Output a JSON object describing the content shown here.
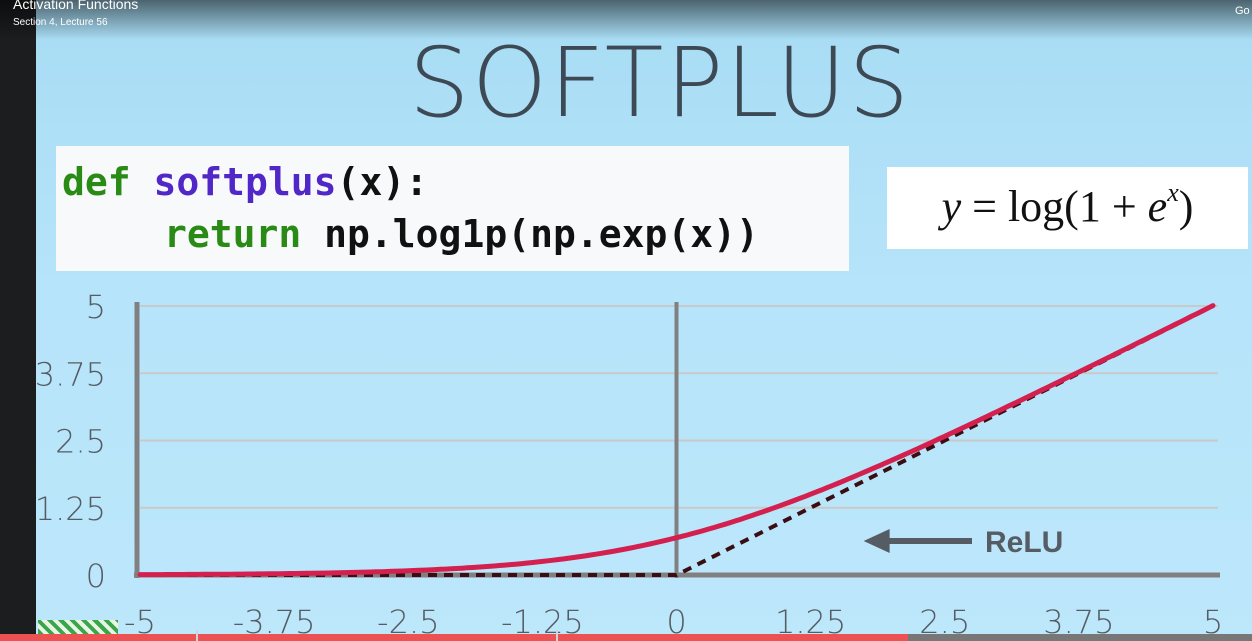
{
  "player": {
    "lecture_title": "Activation Functions",
    "lecture_subtitle": "Section 4, Lecture 56",
    "go_label": "Go",
    "progress": 0.725
  },
  "slide": {
    "title": "SOFTPLUS",
    "code": {
      "line1": {
        "keyword": "def",
        "name": "softplus",
        "rest": "(x):"
      },
      "line2": {
        "keyword": "return",
        "rest": "np.log1p(np.exp(x))"
      }
    },
    "formula": {
      "lhs": "y",
      "eq": " = log(1 + ",
      "base": "e",
      "exp": "x",
      "close": ")"
    },
    "relu_label": "ReLU"
  },
  "colors": {
    "softplus_line": "#d4204f",
    "relu_line": "#3a0d12",
    "axis": "#808080",
    "grid": "#c9c9c9",
    "code_keyword": "#2a8a16",
    "code_function": "#5127c8"
  },
  "chart_data": {
    "type": "line",
    "xlim": [
      -5,
      5
    ],
    "ylim": [
      0,
      5
    ],
    "x_ticks": [
      "-5",
      "-3.75",
      "-2.5",
      "-1.25",
      "0",
      "1.25",
      "2.5",
      "3.75",
      "5"
    ],
    "y_ticks": [
      "0",
      "1.25",
      "2.5",
      "3.75",
      "5"
    ],
    "grid": true,
    "series": [
      {
        "function": "softplus",
        "style": "solid",
        "x": [
          -5,
          -4,
          -3,
          -2,
          -1,
          0,
          1,
          2,
          3,
          4,
          5
        ],
        "y": [
          0.01,
          0.02,
          0.05,
          0.13,
          0.31,
          0.69,
          1.31,
          2.13,
          3.05,
          4.02,
          5.01
        ]
      },
      {
        "name": "ReLU",
        "style": "dashed",
        "x": [
          -5,
          -4,
          -3,
          -2,
          -1,
          0,
          1,
          2,
          3,
          4,
          5
        ],
        "y": [
          0,
          0,
          0,
          0,
          0,
          0,
          1,
          2,
          3,
          4,
          5
        ]
      }
    ],
    "annotation": {
      "text": "ReLU",
      "points_to": [
        1.8,
        1.0
      ]
    }
  }
}
